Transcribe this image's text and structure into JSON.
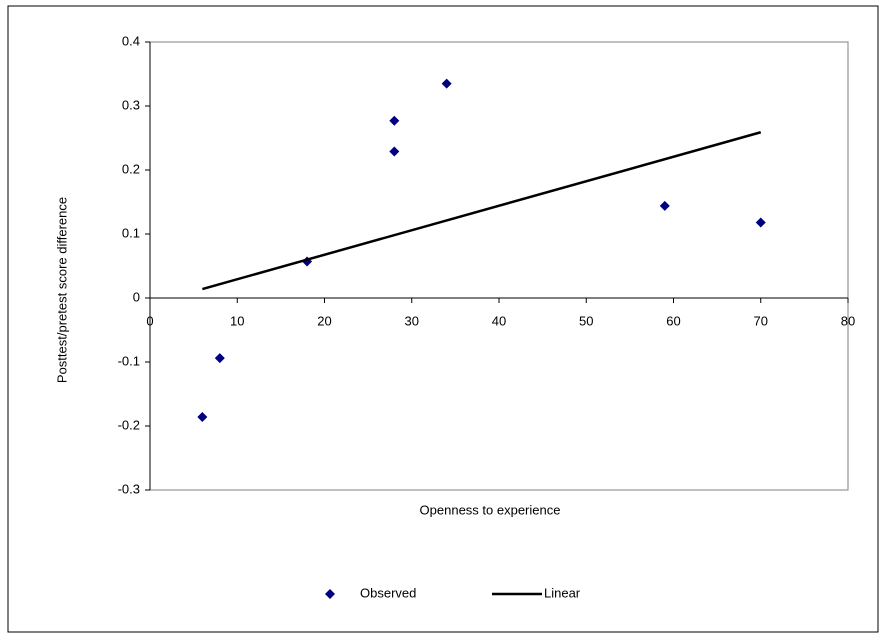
{
  "chart_data": {
    "type": "scatter",
    "xlabel": "Openness to experience",
    "ylabel": "Posttest/pretest score difference",
    "xlim": [
      0,
      80
    ],
    "xticks": [
      0,
      10,
      20,
      30,
      40,
      50,
      60,
      70,
      80
    ],
    "ylim": [
      -0.3,
      0.4
    ],
    "yticks": [
      -0.3,
      -0.2,
      -0.1,
      0,
      0.1,
      0.2,
      0.3,
      0.4
    ],
    "grid": false,
    "legend": "bottom",
    "series": [
      {
        "name": "Observed",
        "type": "scatter",
        "color": "#000080",
        "x": [
          6,
          8,
          18,
          28,
          28,
          34,
          59,
          70
        ],
        "values": [
          -0.186,
          -0.094,
          0.057,
          0.277,
          0.229,
          0.335,
          0.144,
          0.118
        ]
      },
      {
        "name": "Linear",
        "type": "line",
        "color": "#000000",
        "x": [
          6,
          70
        ],
        "values": [
          0.014,
          0.259
        ]
      }
    ]
  }
}
